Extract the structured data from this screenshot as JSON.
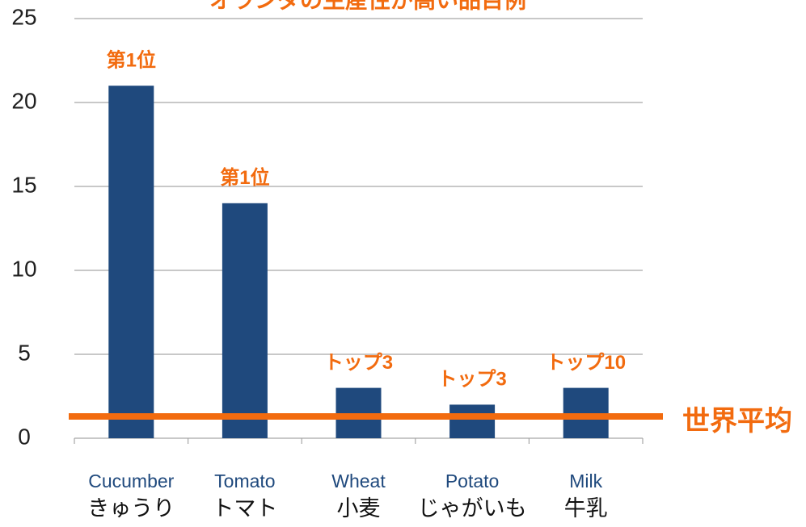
{
  "chart_data": {
    "type": "bar",
    "title": "オランダの生産性が高い品目例",
    "categories": [
      "Cucumber",
      "Tomato",
      "Wheat",
      "Potato",
      "Milk"
    ],
    "categories_ja": [
      "きゅうり",
      "トマト",
      "小麦",
      "じゃがいも",
      "牛乳"
    ],
    "values": [
      21,
      14,
      3,
      2,
      3
    ],
    "annotations": [
      "第1位",
      "第1位",
      "トップ3",
      "トップ3",
      "トップ10"
    ],
    "color": "#1f497d",
    "annotation_color": "#f26b0f",
    "ylim": [
      0,
      25
    ],
    "yticks": [
      0,
      5,
      10,
      15,
      20,
      25
    ],
    "grid": true,
    "reference_line": {
      "label": "世界平均",
      "value": 1.3,
      "color": "#f26b0f"
    }
  }
}
